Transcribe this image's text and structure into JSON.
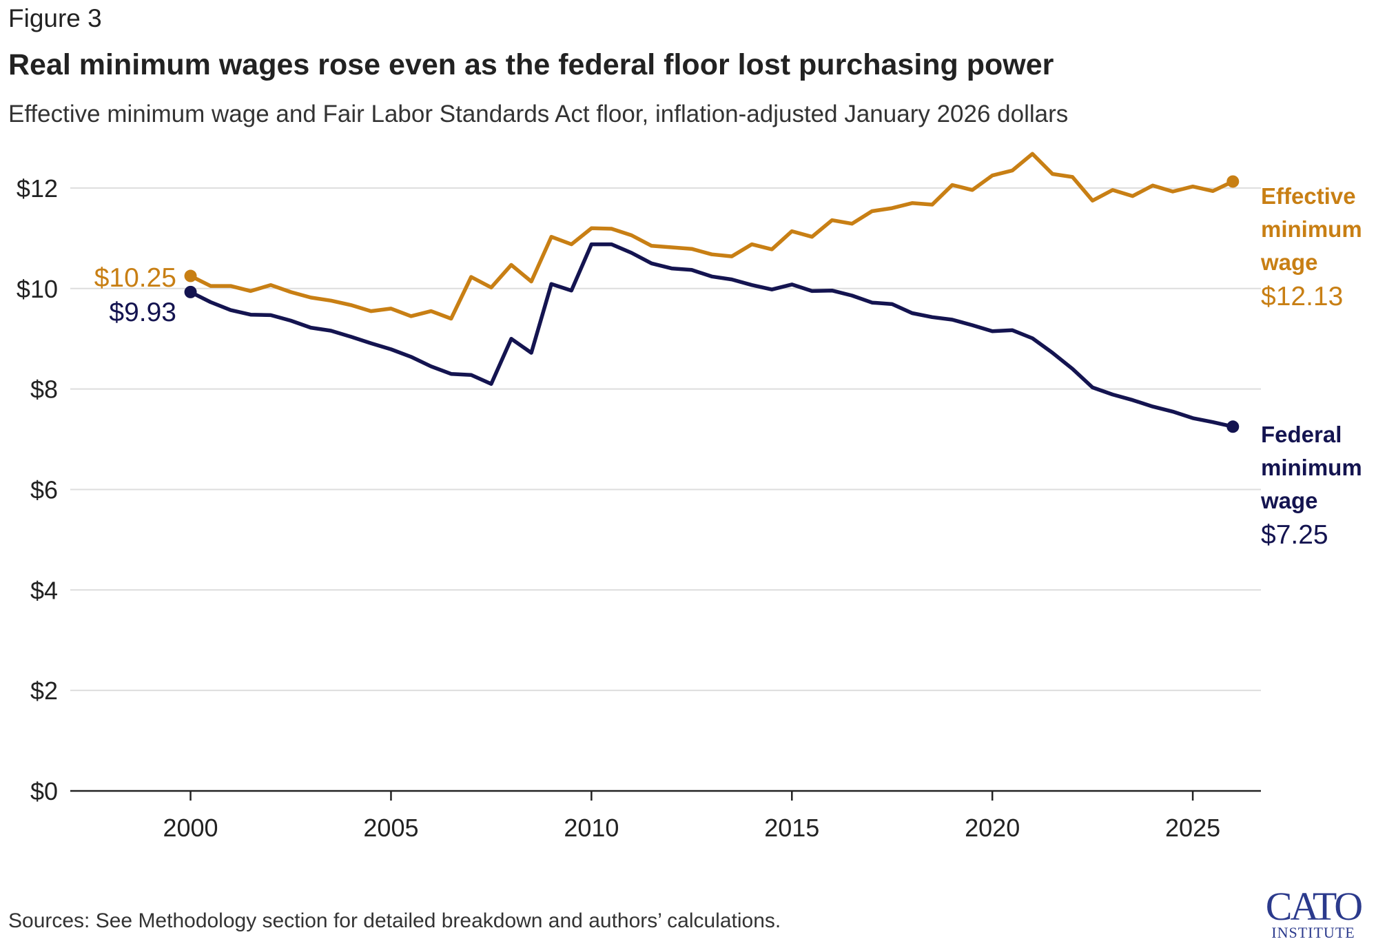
{
  "figure_label": "Figure 3",
  "title": "Real minimum wages rose even as the federal floor lost purchasing power",
  "subtitle": "Effective minimum wage and Fair Labor Standards Act floor, inflation-adjusted January 2026 dollars",
  "source": "Sources: See Methodology section for detailed breakdown and authors’ calculations.",
  "logo": {
    "line1": "CATO",
    "line2": "INSTITUTE"
  },
  "colors": {
    "effective": "#c87f14",
    "federal": "#141450",
    "grid": "#dddddd",
    "axis": "#222222"
  },
  "chart_data": {
    "type": "line",
    "title": "Real minimum wages rose even as the federal floor lost purchasing power",
    "xlabel": "",
    "ylabel": "",
    "xlim": [
      1997,
      2026.7
    ],
    "ylim": [
      0,
      13
    ],
    "xticks": [
      2000,
      2005,
      2010,
      2015,
      2020,
      2025
    ],
    "yticks": [
      0,
      2,
      4,
      6,
      8,
      10,
      12
    ],
    "ytick_labels": [
      "$0",
      "$2",
      "$4",
      "$6",
      "$8",
      "$10",
      "$12"
    ],
    "grid": true,
    "legend": "direct labels at right end of lines",
    "x": [
      2000,
      2000.5,
      2001,
      2001.5,
      2002,
      2002.5,
      2003,
      2003.5,
      2004,
      2004.5,
      2005,
      2005.5,
      2006,
      2006.5,
      2007,
      2007.5,
      2008,
      2008.5,
      2009,
      2009.5,
      2010,
      2010.5,
      2011,
      2011.5,
      2012,
      2012.5,
      2013,
      2013.5,
      2014,
      2014.5,
      2015,
      2015.5,
      2016,
      2016.5,
      2017,
      2017.5,
      2018,
      2018.5,
      2019,
      2019.5,
      2020,
      2020.5,
      2021,
      2021.5,
      2022,
      2022.5,
      2023,
      2023.5,
      2024,
      2024.5,
      2025,
      2025.5,
      2026
    ],
    "series": [
      {
        "name": "Effective minimum wage",
        "end_value_label": "$12.13",
        "start_value_label": "$10.25",
        "values": [
          10.25,
          10.05,
          10.05,
          9.95,
          10.07,
          9.93,
          9.82,
          9.76,
          9.67,
          9.55,
          9.6,
          9.45,
          9.55,
          9.4,
          10.23,
          10.02,
          10.47,
          10.14,
          11.03,
          10.88,
          11.2,
          11.19,
          11.06,
          10.85,
          10.82,
          10.79,
          10.68,
          10.64,
          10.88,
          10.78,
          11.14,
          11.03,
          11.36,
          11.29,
          11.54,
          11.6,
          11.7,
          11.67,
          12.06,
          11.96,
          12.25,
          12.35,
          12.68,
          12.28,
          12.22,
          11.75,
          11.96,
          11.84,
          12.05,
          11.93,
          12.03,
          11.94,
          12.13
        ]
      },
      {
        "name": "Federal minimum wage",
        "end_value_label": "$7.25",
        "start_value_label": "$9.93",
        "values": [
          9.93,
          9.73,
          9.57,
          9.48,
          9.47,
          9.36,
          9.22,
          9.16,
          9.04,
          8.91,
          8.79,
          8.64,
          8.45,
          8.3,
          8.28,
          8.1,
          9.0,
          8.72,
          10.09,
          9.96,
          10.88,
          10.88,
          10.71,
          10.5,
          10.4,
          10.37,
          10.24,
          10.18,
          10.07,
          9.98,
          10.08,
          9.95,
          9.96,
          9.86,
          9.72,
          9.69,
          9.51,
          9.43,
          9.38,
          9.27,
          9.15,
          9.17,
          9.01,
          8.72,
          8.4,
          8.03,
          7.89,
          7.78,
          7.65,
          7.55,
          7.42,
          7.34,
          7.25
        ]
      }
    ]
  }
}
